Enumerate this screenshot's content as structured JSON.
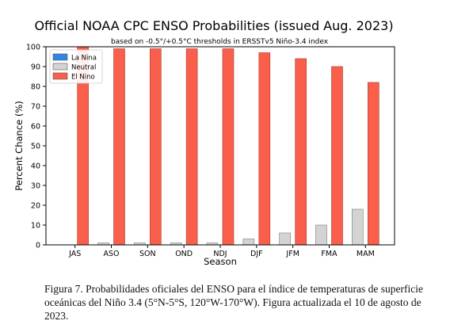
{
  "chart_data": {
    "type": "bar",
    "title": "Official NOAA CPC ENSO Probabilities (issued Aug. 2023)",
    "subtitle": "based on -0.5°/+0.5°C thresholds in ERSSTv5 Niño-3.4 index",
    "xlabel": "Season",
    "ylabel": "Percent Chance (%)",
    "ylim": [
      0,
      100
    ],
    "yticks": [
      0,
      10,
      20,
      30,
      40,
      50,
      60,
      70,
      80,
      90,
      100
    ],
    "grid": false,
    "legend_position": "top-left",
    "categories": [
      "JAS",
      "ASO",
      "SON",
      "OND",
      "NDJ",
      "DJF",
      "JFM",
      "FMA",
      "MAM"
    ],
    "series": [
      {
        "name": "La Nina",
        "color": "#2e86e6",
        "values": [
          0,
          0,
          0,
          0,
          0,
          0,
          0,
          0,
          0
        ]
      },
      {
        "name": "Neutral",
        "color": "#d3d3d3",
        "values": [
          0,
          1,
          1,
          1,
          1,
          3,
          6,
          10,
          18
        ]
      },
      {
        "name": "El Nino",
        "color": "#fa5f4b",
        "values": [
          100,
          99,
          99,
          99,
          99,
          97,
          94,
          90,
          82
        ]
      }
    ]
  },
  "caption": "Figura 7. Probabilidades oficiales del ENSO para el índice de temperaturas de superficie oceánicas del Niño 3.4 (5°N-5°S, 120°W-170°W). Figura actualizada el 10 de agosto de 2023."
}
